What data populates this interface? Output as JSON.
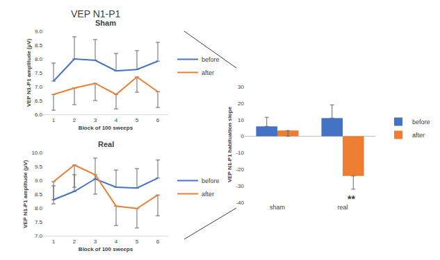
{
  "title": "VEP N1-P1",
  "chart_data": [
    {
      "type": "line",
      "title": "Sham",
      "x_label": "Block of 100 sweeps",
      "y_label": "VEP N1-P1 amplitude (µV)",
      "x": [
        1,
        2,
        3,
        4,
        5,
        6
      ],
      "xlim": [
        0.5,
        6.5
      ],
      "xticks": [
        1,
        2,
        3,
        4,
        5,
        6
      ],
      "ylim": [
        6.0,
        9.0
      ],
      "yticks": [
        {
          "value": 6.0,
          "label": "6.0"
        },
        {
          "value": 6.5,
          "label": "6.5"
        },
        {
          "value": 7.0,
          "label": "7.0"
        },
        {
          "value": 7.5,
          "label": "7.5"
        },
        {
          "value": 8.0,
          "label": "8.0"
        },
        {
          "value": 8.5,
          "label": "8.5"
        },
        {
          "value": 9.0,
          "label": "9.0"
        }
      ],
      "grid": false,
      "legend": "right",
      "series": [
        {
          "name": "before",
          "color": "#4472c4",
          "values": [
            7.2,
            8.0,
            7.95,
            7.57,
            7.62,
            7.92
          ],
          "error_plus": [
            0.65,
            0.8,
            0.75,
            0.63,
            0.68,
            0.68
          ]
        },
        {
          "name": "after",
          "color": "#ed7d31",
          "values": [
            6.72,
            6.95,
            7.12,
            6.72,
            7.35,
            6.82
          ],
          "error_minus": [
            0.57,
            0.6,
            0.62,
            0.52,
            0.55,
            0.57
          ]
        }
      ]
    },
    {
      "type": "line",
      "title": "Real",
      "x_label": "Block of 100 sweeps",
      "y_label": "VEP N1-P1 amplitude (µV)",
      "x": [
        1,
        2,
        3,
        4,
        5,
        6
      ],
      "xlim": [
        0.5,
        6.5
      ],
      "xticks": [
        1,
        2,
        3,
        4,
        5,
        6
      ],
      "ylim": [
        7.0,
        10.0
      ],
      "yticks": [
        {
          "value": 7.0,
          "label": "7.0"
        },
        {
          "value": 7.5,
          "label": "7.5"
        },
        {
          "value": 8.0,
          "label": "8.0"
        },
        {
          "value": 8.5,
          "label": "8.5"
        },
        {
          "value": 9.0,
          "label": "9.0"
        },
        {
          "value": 9.5,
          "label": "9.5"
        },
        {
          "value": 10.0,
          "label": "10.0"
        }
      ],
      "grid": false,
      "legend": "right",
      "series": [
        {
          "name": "before",
          "color": "#4472c4",
          "values": [
            8.3,
            8.6,
            9.05,
            8.75,
            8.72,
            9.08
          ],
          "error_plus": [
            0.5,
            0.6,
            0.75,
            0.62,
            0.7,
            0.65
          ]
        },
        {
          "name": "after",
          "color": "#ed7d31",
          "values": [
            8.95,
            9.55,
            9.2,
            8.07,
            7.98,
            8.47
          ],
          "error_minus": [
            0.8,
            0.8,
            0.7,
            0.7,
            0.7,
            0.75
          ]
        }
      ]
    },
    {
      "type": "bar",
      "y_label": "VEP N1-P1 habituation slope",
      "categories": [
        "sham",
        "real"
      ],
      "ylim": [
        -40,
        30
      ],
      "yticks": [
        -40,
        -30,
        -20,
        -10,
        0,
        10,
        20,
        30
      ],
      "grid": false,
      "legend": "right",
      "annotations": [
        {
          "text": "**",
          "category": "real",
          "series": "after"
        }
      ],
      "series": [
        {
          "name": "before",
          "color": "#4472c4",
          "values": [
            6,
            11
          ],
          "error_plus": [
            5.5,
            8
          ]
        },
        {
          "name": "after",
          "color": "#ed7d31",
          "values": [
            3.5,
            -24
          ],
          "error_minus": [
            3.5,
            8
          ]
        }
      ]
    }
  ]
}
